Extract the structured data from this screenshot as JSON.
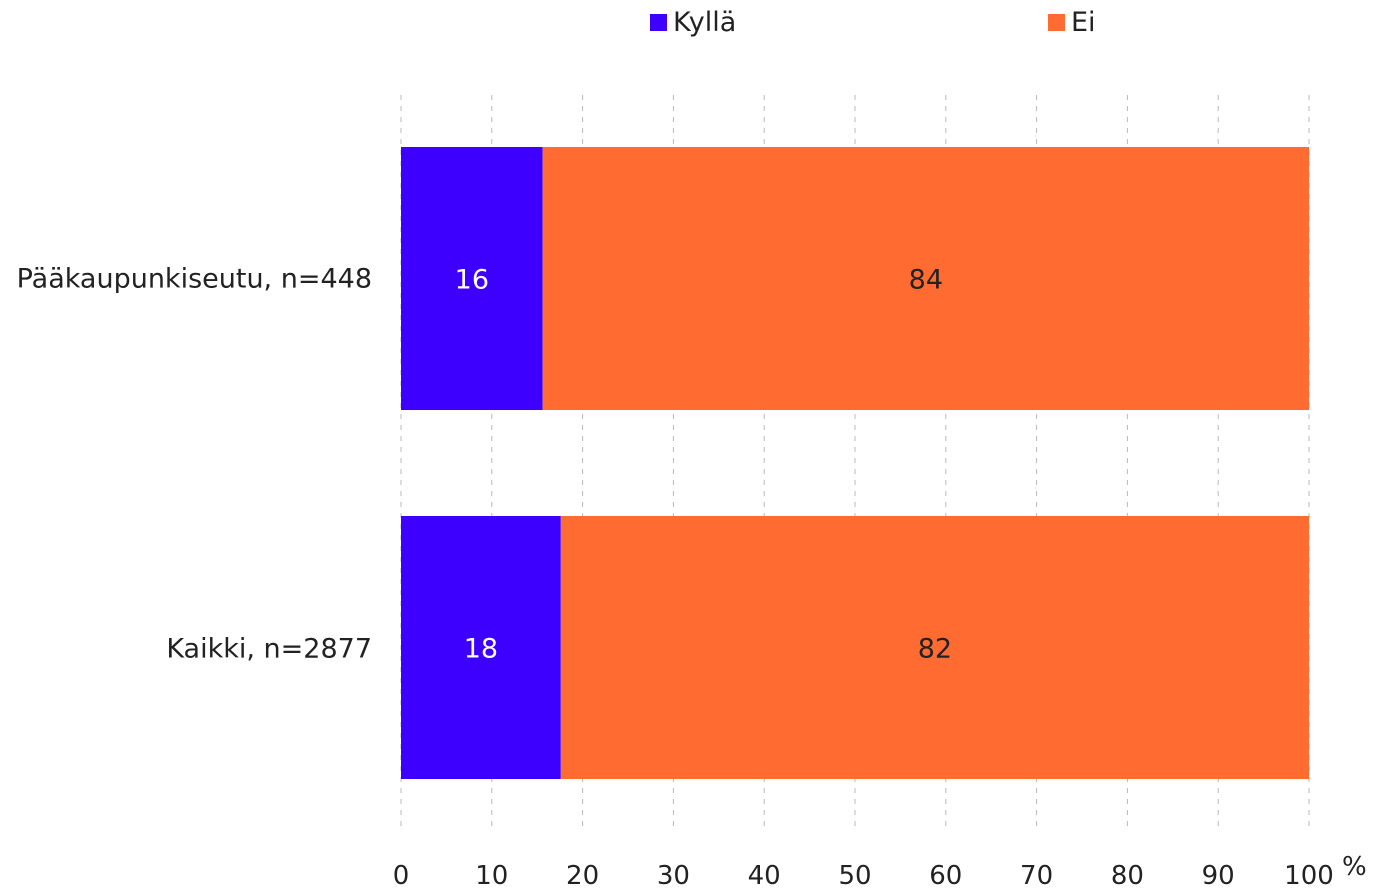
{
  "chart_data": {
    "type": "bar",
    "orientation": "horizontal",
    "stacked": true,
    "categories": [
      "Pääkaupunkiseutu, n=448",
      "Kaikki, n=2877"
    ],
    "series": [
      {
        "name": "Kyllä",
        "color": "#3d00ff",
        "label_color": "#ffffff",
        "values": [
          16,
          18
        ],
        "plotted": [
          15.6,
          17.6
        ]
      },
      {
        "name": "Ei",
        "color": "#ff6b30",
        "label_color": "#222222",
        "values": [
          84,
          82
        ],
        "plotted": [
          84.4,
          82.4
        ]
      }
    ],
    "xlim": [
      0,
      100
    ],
    "xticks": [
      0,
      10,
      20,
      30,
      40,
      50,
      60,
      70,
      80,
      90,
      100
    ],
    "xunit": "%",
    "grid": "vertical-dashed",
    "legend_position": "top"
  }
}
